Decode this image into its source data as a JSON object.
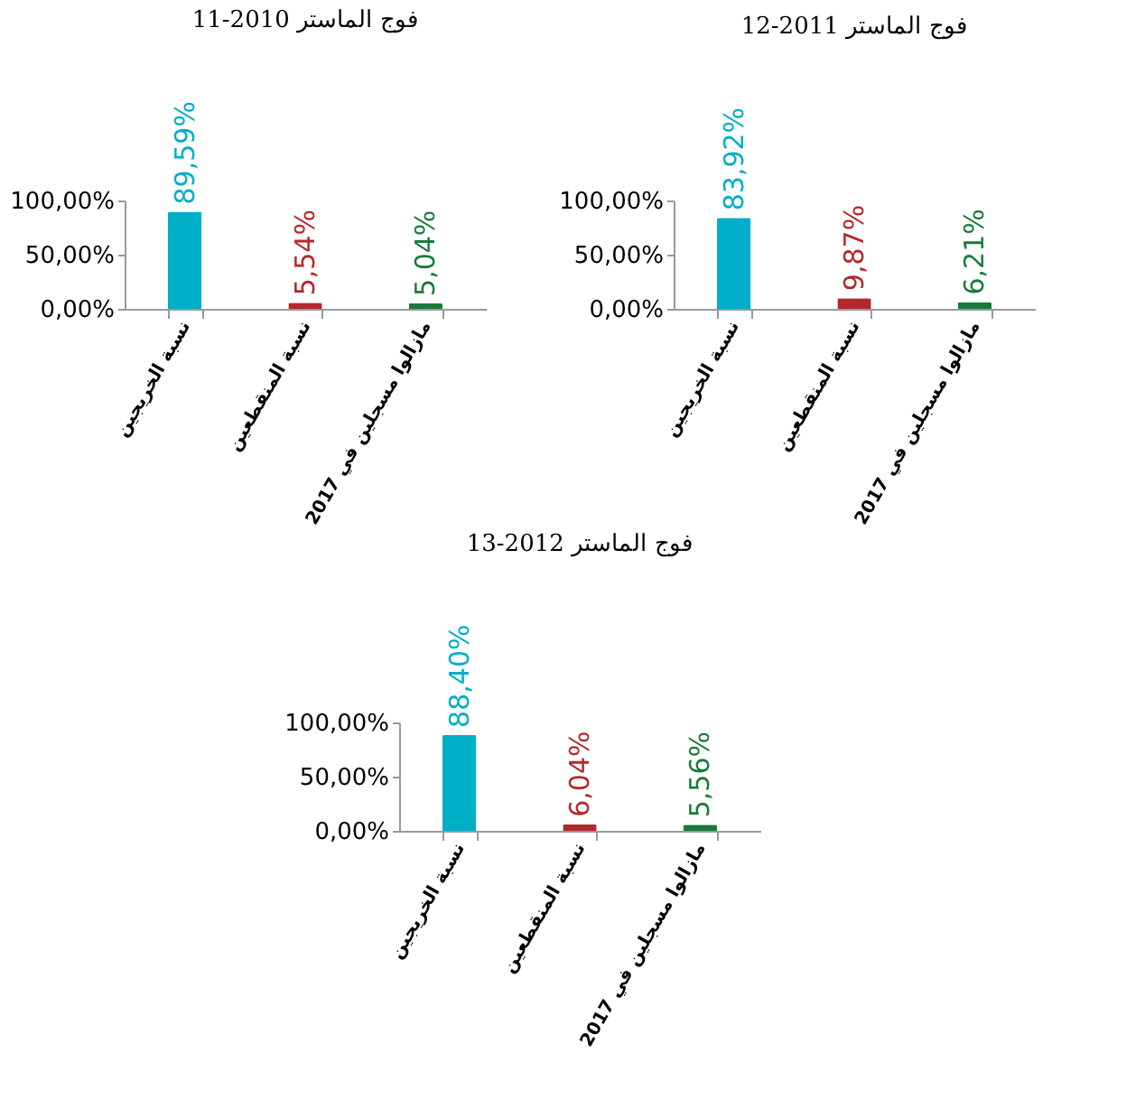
{
  "chart_data": [
    {
      "type": "bar",
      "title": "فوج الماستر 2010-11",
      "categories": [
        "نسبة الخريجين",
        "نسبة المنقطعين",
        "مازالوا مسجلين في 2017"
      ],
      "values": [
        89.59,
        5.54,
        5.04
      ],
      "colors": [
        "#00aec7",
        "#b3282d",
        "#1a7a3c"
      ],
      "value_labels": [
        "89,59%",
        "5,54%",
        "5,04%"
      ],
      "ylim": [
        0,
        100
      ],
      "yticks": [
        {
          "value": 0,
          "label": "0,00%"
        },
        {
          "value": 50,
          "label": "50,00%"
        },
        {
          "value": 100,
          "label": "100,00%"
        }
      ]
    },
    {
      "type": "bar",
      "title": "فوج الماستر 2011-12",
      "categories": [
        "نسبة الخريجين",
        "نسبة المنقطعين",
        "مازالوا مسجلين في 2017"
      ],
      "values": [
        83.92,
        9.87,
        6.21
      ],
      "colors": [
        "#00aec7",
        "#b3282d",
        "#1a7a3c"
      ],
      "value_labels": [
        "83,92%",
        "9,87%",
        "6,21%"
      ],
      "ylim": [
        0,
        100
      ],
      "yticks": [
        {
          "value": 0,
          "label": "0,00%"
        },
        {
          "value": 50,
          "label": "50,00%"
        },
        {
          "value": 100,
          "label": "100,00%"
        }
      ]
    },
    {
      "type": "bar",
      "title": "فوج الماستر 2012-13",
      "categories": [
        "نسبة الخريجين",
        "نسبة المنقطعين",
        "مازالوا مسجلين في 2017"
      ],
      "values": [
        88.4,
        6.04,
        5.56
      ],
      "colors": [
        "#00aec7",
        "#b3282d",
        "#1a7a3c"
      ],
      "value_labels": [
        "88,40%",
        "6,04%",
        "5,56%"
      ],
      "ylim": [
        0,
        100
      ],
      "yticks": [
        {
          "value": 0,
          "label": "0,00%"
        },
        {
          "value": 50,
          "label": "50,00%"
        },
        {
          "value": 100,
          "label": "100,00%"
        }
      ]
    }
  ]
}
